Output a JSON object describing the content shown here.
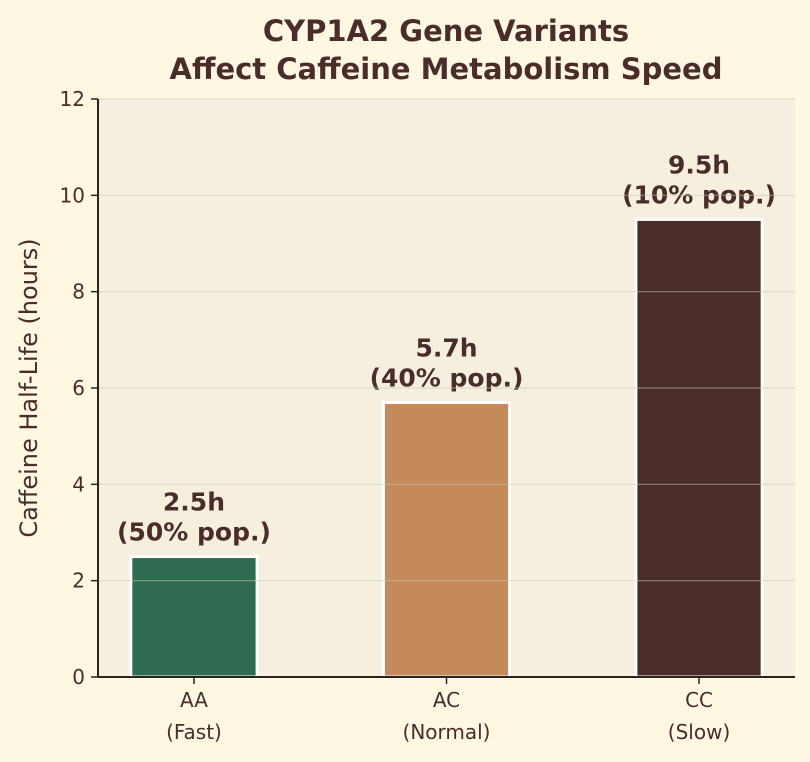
{
  "chart_data": {
    "type": "bar",
    "title": [
      "CYP1A2 Gene Variants",
      "Affect Caffeine Metabolism Speed"
    ],
    "xlabel": "",
    "ylabel": "Caffeine Half-Life (hours)",
    "categories": [
      [
        "AA",
        "(Fast)"
      ],
      [
        "AC",
        "(Normal)"
      ],
      [
        "CC",
        "(Slow)"
      ]
    ],
    "values": [
      2.5,
      5.7,
      9.5
    ],
    "data_labels": [
      [
        "2.5h",
        "(50% pop.)"
      ],
      [
        "5.7h",
        "(40% pop.)"
      ],
      [
        "9.5h",
        "(10% pop.)"
      ]
    ],
    "bar_colors": [
      "#2E6B50",
      "#C48A5A",
      "#4A2C2A"
    ],
    "ylim": [
      0,
      12
    ],
    "yticks": [
      0,
      2,
      4,
      6,
      8,
      10,
      12
    ],
    "grid": "horizontal",
    "legend": "none",
    "colors": {
      "background": "#FEF8E2",
      "plot_background": "#F5EFE0",
      "text": "#4A2C2A",
      "axis": "#2B2320",
      "grid": "#DCDCCF"
    }
  }
}
